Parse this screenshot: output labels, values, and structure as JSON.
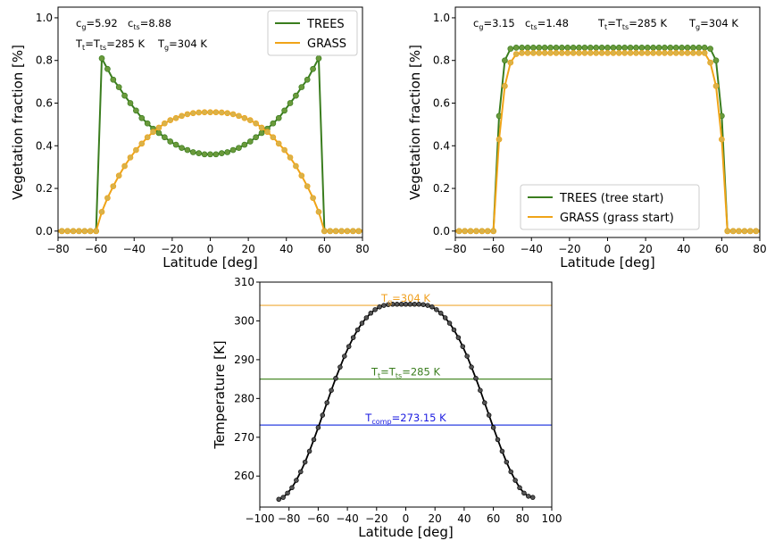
{
  "colors": {
    "trees": "#3a7d1e",
    "trees_marker": "#6a9a3c",
    "grass": "#f0a418",
    "grass_marker": "#d9b24a",
    "temperature": "#000000",
    "temp_marker": "#555555",
    "hline_grass": "#f2b95a",
    "hline_trees": "#4a8a2a",
    "hline_freeze": "#2a3fe0",
    "annot_grass": "#f0a020",
    "annot_trees": "#3a7d1e",
    "annot_freeze": "#1a1ae0"
  },
  "chart_data": [
    {
      "id": "left",
      "type": "line",
      "xlabel": "Latitude [deg]",
      "ylabel": "Vegetation fraction [%]",
      "xlim": [
        -80,
        80
      ],
      "ylim": [
        -0.03,
        1.05
      ],
      "xticks": [
        -80,
        -60,
        -40,
        -20,
        0,
        20,
        40,
        60,
        80
      ],
      "yticks": [
        0.0,
        0.2,
        0.4,
        0.6,
        0.8,
        1.0
      ],
      "ytick_labels": [
        "0.0",
        "0.2",
        "0.4",
        "0.6",
        "0.8",
        "1.0"
      ],
      "grid": false,
      "legend": "top-right",
      "annotations": [
        {
          "base": "c",
          "sub": "g",
          "rest": "=5.92"
        },
        {
          "base": "c",
          "sub": "ts",
          "rest": "=8.88"
        },
        {
          "base": "T",
          "sub": "t",
          "mid": "=T",
          "sub2": "ts",
          "rest": "=285 K"
        },
        {
          "base": "T",
          "sub": "g",
          "rest": "=304 K"
        }
      ],
      "series": [
        {
          "name": "TREES",
          "x": [
            -87,
            -84,
            -81,
            -78,
            -75,
            -72,
            -69,
            -66,
            -63,
            -60,
            -57,
            -54,
            -51,
            -48,
            -45,
            -42,
            -39,
            -36,
            -33,
            -30,
            -27,
            -24,
            -21,
            -18,
            -15,
            -12,
            -9,
            -6,
            -3,
            0,
            3,
            6,
            9,
            12,
            15,
            18,
            21,
            24,
            27,
            30,
            33,
            36,
            39,
            42,
            45,
            48,
            51,
            54,
            57,
            60,
            63,
            66,
            69,
            72,
            75,
            78,
            81,
            84,
            87
          ],
          "values": [
            0,
            0,
            0,
            0,
            0,
            0,
            0,
            0,
            0,
            0,
            0.81,
            0.76,
            0.71,
            0.675,
            0.635,
            0.6,
            0.565,
            0.53,
            0.505,
            0.48,
            0.46,
            0.44,
            0.42,
            0.405,
            0.39,
            0.38,
            0.37,
            0.365,
            0.36,
            0.36,
            0.36,
            0.365,
            0.37,
            0.38,
            0.39,
            0.405,
            0.42,
            0.44,
            0.46,
            0.48,
            0.505,
            0.53,
            0.565,
            0.6,
            0.635,
            0.675,
            0.71,
            0.76,
            0.81,
            0,
            0,
            0,
            0,
            0,
            0,
            0,
            0,
            0,
            0
          ]
        },
        {
          "name": "GRASS",
          "x": [
            -87,
            -84,
            -81,
            -78,
            -75,
            -72,
            -69,
            -66,
            -63,
            -60,
            -57,
            -54,
            -51,
            -48,
            -45,
            -42,
            -39,
            -36,
            -33,
            -30,
            -27,
            -24,
            -21,
            -18,
            -15,
            -12,
            -9,
            -6,
            -3,
            0,
            3,
            6,
            9,
            12,
            15,
            18,
            21,
            24,
            27,
            30,
            33,
            36,
            39,
            42,
            45,
            48,
            51,
            54,
            57,
            60,
            63,
            66,
            69,
            72,
            75,
            78,
            81,
            84,
            87
          ],
          "values": [
            0,
            0,
            0,
            0,
            0,
            0,
            0,
            0,
            0,
            0,
            0.09,
            0.155,
            0.21,
            0.26,
            0.305,
            0.345,
            0.38,
            0.41,
            0.44,
            0.465,
            0.485,
            0.505,
            0.52,
            0.53,
            0.54,
            0.548,
            0.553,
            0.556,
            0.557,
            0.557,
            0.557,
            0.556,
            0.553,
            0.548,
            0.54,
            0.53,
            0.52,
            0.505,
            0.485,
            0.465,
            0.44,
            0.41,
            0.38,
            0.345,
            0.305,
            0.26,
            0.21,
            0.155,
            0.09,
            0,
            0,
            0,
            0,
            0,
            0,
            0,
            0,
            0,
            0
          ]
        }
      ]
    },
    {
      "id": "right",
      "type": "line",
      "xlabel": "Latitude [deg]",
      "ylabel": "Vegetation fraction [%]",
      "xlim": [
        -80,
        80
      ],
      "ylim": [
        -0.03,
        1.05
      ],
      "xticks": [
        -80,
        -60,
        -40,
        -20,
        0,
        20,
        40,
        60,
        80
      ],
      "yticks": [
        0.0,
        0.2,
        0.4,
        0.6,
        0.8,
        1.0
      ],
      "ytick_labels": [
        "0.0",
        "0.2",
        "0.4",
        "0.6",
        "0.8",
        "1.0"
      ],
      "grid": false,
      "legend": "lower-center",
      "annotations": [
        {
          "base": "c",
          "sub": "g",
          "rest": "=3.15"
        },
        {
          "base": "c",
          "sub": "ts",
          "rest": "=1.48"
        },
        {
          "base": "T",
          "sub": "t",
          "mid": "=T",
          "sub2": "ts",
          "rest": "=285 K"
        },
        {
          "base": "T",
          "sub": "g",
          "rest": "=304 K"
        }
      ],
      "series": [
        {
          "name": "TREES (tree start)",
          "x": [
            -87,
            -84,
            -81,
            -78,
            -75,
            -72,
            -69,
            -66,
            -63,
            -60,
            -57,
            -54,
            -51,
            -48,
            -45,
            -42,
            -39,
            -36,
            -33,
            -30,
            -27,
            -24,
            -21,
            -18,
            -15,
            -12,
            -9,
            -6,
            -3,
            0,
            3,
            6,
            9,
            12,
            15,
            18,
            21,
            24,
            27,
            30,
            33,
            36,
            39,
            42,
            45,
            48,
            51,
            54,
            57,
            60,
            63,
            66,
            69,
            72,
            75,
            78,
            81,
            84,
            87
          ],
          "values": [
            0,
            0,
            0,
            0,
            0,
            0,
            0,
            0,
            0,
            0,
            0.54,
            0.8,
            0.855,
            0.86,
            0.86,
            0.86,
            0.86,
            0.86,
            0.86,
            0.86,
            0.86,
            0.86,
            0.86,
            0.86,
            0.86,
            0.86,
            0.86,
            0.86,
            0.86,
            0.86,
            0.86,
            0.86,
            0.86,
            0.86,
            0.86,
            0.86,
            0.86,
            0.86,
            0.86,
            0.86,
            0.86,
            0.86,
            0.86,
            0.86,
            0.86,
            0.86,
            0.86,
            0.855,
            0.8,
            0.54,
            0,
            0,
            0,
            0,
            0,
            0,
            0,
            0,
            0
          ]
        },
        {
          "name": "GRASS (grass start)",
          "x": [
            -87,
            -84,
            -81,
            -78,
            -75,
            -72,
            -69,
            -66,
            -63,
            -60,
            -57,
            -54,
            -51,
            -48,
            -45,
            -42,
            -39,
            -36,
            -33,
            -30,
            -27,
            -24,
            -21,
            -18,
            -15,
            -12,
            -9,
            -6,
            -3,
            0,
            3,
            6,
            9,
            12,
            15,
            18,
            21,
            24,
            27,
            30,
            33,
            36,
            39,
            42,
            45,
            48,
            51,
            54,
            57,
            60,
            63,
            66,
            69,
            72,
            75,
            78,
            81,
            84,
            87
          ],
          "values": [
            0,
            0,
            0,
            0,
            0,
            0,
            0,
            0,
            0,
            0,
            0.43,
            0.68,
            0.79,
            0.83,
            0.835,
            0.835,
            0.835,
            0.835,
            0.835,
            0.835,
            0.835,
            0.835,
            0.835,
            0.835,
            0.835,
            0.835,
            0.835,
            0.835,
            0.835,
            0.835,
            0.835,
            0.835,
            0.835,
            0.835,
            0.835,
            0.835,
            0.835,
            0.835,
            0.835,
            0.835,
            0.835,
            0.835,
            0.835,
            0.835,
            0.835,
            0.835,
            0.835,
            0.79,
            0.68,
            0.43,
            0,
            0,
            0,
            0,
            0,
            0,
            0,
            0,
            0
          ]
        }
      ]
    },
    {
      "id": "bottom",
      "type": "line",
      "xlabel": "Latitude [deg]",
      "ylabel": "Temperature [K]",
      "xlim": [
        -100,
        100
      ],
      "ylim": [
        252,
        310
      ],
      "xticks": [
        -100,
        -80,
        -60,
        -40,
        -20,
        0,
        20,
        40,
        60,
        80,
        100
      ],
      "yticks": [
        260,
        270,
        280,
        290,
        300,
        310
      ],
      "grid": false,
      "hlines": [
        {
          "y": 304,
          "colorKey": "hline_grass",
          "labelColorKey": "annot_grass",
          "base": "T",
          "sub": "g",
          "mid": "",
          "sub2": "",
          "rest": "=304 K"
        },
        {
          "y": 285,
          "colorKey": "hline_trees",
          "labelColorKey": "annot_trees",
          "base": "T",
          "sub": "t",
          "mid": "=T",
          "sub2": "ts",
          "rest": "=285 K"
        },
        {
          "y": 273.15,
          "colorKey": "hline_freeze",
          "labelColorKey": "annot_freeze",
          "base": "T",
          "sub": "comp",
          "mid": "",
          "sub2": "",
          "rest": "=273.15 K"
        }
      ],
      "series": [
        {
          "x": [
            -87,
            -84,
            -81,
            -78,
            -75,
            -72,
            -69,
            -66,
            -63,
            -60,
            -57,
            -54,
            -51,
            -48,
            -45,
            -42,
            -39,
            -36,
            -33,
            -30,
            -27,
            -24,
            -21,
            -18,
            -15,
            -12,
            -9,
            -6,
            -3,
            0,
            3,
            6,
            9,
            12,
            15,
            18,
            21,
            24,
            27,
            30,
            33,
            36,
            39,
            42,
            45,
            48,
            51,
            54,
            57,
            60,
            63,
            66,
            69,
            72,
            75,
            78,
            81,
            84,
            87
          ],
          "values": [
            254.0,
            254.5,
            255.6,
            257.0,
            258.9,
            261.1,
            263.6,
            266.4,
            269.4,
            272.5,
            275.7,
            278.9,
            282.1,
            285.2,
            288.1,
            290.9,
            293.4,
            295.7,
            297.7,
            299.4,
            300.8,
            302.0,
            302.9,
            303.6,
            304.0,
            304.2,
            304.3,
            304.3,
            304.3,
            304.3,
            304.3,
            304.3,
            304.3,
            304.2,
            304.0,
            303.6,
            302.9,
            302.0,
            300.8,
            299.4,
            297.7,
            295.7,
            293.4,
            290.9,
            288.1,
            285.2,
            282.1,
            278.9,
            275.7,
            272.5,
            269.4,
            266.4,
            263.6,
            261.1,
            258.9,
            257.0,
            255.6,
            254.8,
            254.5
          ]
        }
      ]
    }
  ]
}
